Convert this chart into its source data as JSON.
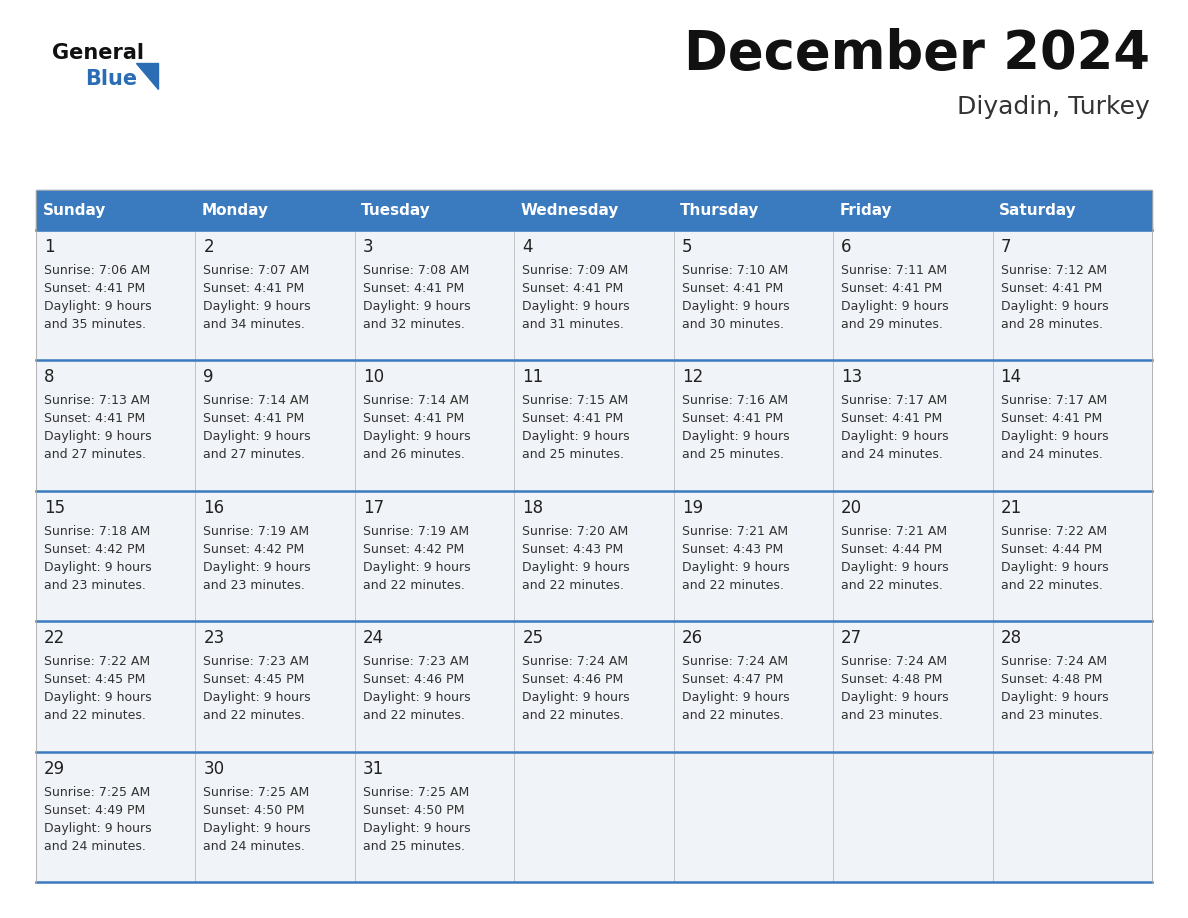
{
  "title": "December 2024",
  "subtitle": "Diyadin, Turkey",
  "header_color": "#3a7abf",
  "header_text_color": "#ffffff",
  "border_color": "#3a7abf",
  "cell_bg_color": "#f0f3f7",
  "days_of_week": [
    "Sunday",
    "Monday",
    "Tuesday",
    "Wednesday",
    "Thursday",
    "Friday",
    "Saturday"
  ],
  "calendar_data": [
    [
      {
        "day": "1",
        "sunrise": "7:06 AM",
        "sunset": "4:41 PM",
        "daylight_line1": "Daylight: 9 hours",
        "daylight_line2": "and 35 minutes."
      },
      {
        "day": "2",
        "sunrise": "7:07 AM",
        "sunset": "4:41 PM",
        "daylight_line1": "Daylight: 9 hours",
        "daylight_line2": "and 34 minutes."
      },
      {
        "day": "3",
        "sunrise": "7:08 AM",
        "sunset": "4:41 PM",
        "daylight_line1": "Daylight: 9 hours",
        "daylight_line2": "and 32 minutes."
      },
      {
        "day": "4",
        "sunrise": "7:09 AM",
        "sunset": "4:41 PM",
        "daylight_line1": "Daylight: 9 hours",
        "daylight_line2": "and 31 minutes."
      },
      {
        "day": "5",
        "sunrise": "7:10 AM",
        "sunset": "4:41 PM",
        "daylight_line1": "Daylight: 9 hours",
        "daylight_line2": "and 30 minutes."
      },
      {
        "day": "6",
        "sunrise": "7:11 AM",
        "sunset": "4:41 PM",
        "daylight_line1": "Daylight: 9 hours",
        "daylight_line2": "and 29 minutes."
      },
      {
        "day": "7",
        "sunrise": "7:12 AM",
        "sunset": "4:41 PM",
        "daylight_line1": "Daylight: 9 hours",
        "daylight_line2": "and 28 minutes."
      }
    ],
    [
      {
        "day": "8",
        "sunrise": "7:13 AM",
        "sunset": "4:41 PM",
        "daylight_line1": "Daylight: 9 hours",
        "daylight_line2": "and 27 minutes."
      },
      {
        "day": "9",
        "sunrise": "7:14 AM",
        "sunset": "4:41 PM",
        "daylight_line1": "Daylight: 9 hours",
        "daylight_line2": "and 27 minutes."
      },
      {
        "day": "10",
        "sunrise": "7:14 AM",
        "sunset": "4:41 PM",
        "daylight_line1": "Daylight: 9 hours",
        "daylight_line2": "and 26 minutes."
      },
      {
        "day": "11",
        "sunrise": "7:15 AM",
        "sunset": "4:41 PM",
        "daylight_line1": "Daylight: 9 hours",
        "daylight_line2": "and 25 minutes."
      },
      {
        "day": "12",
        "sunrise": "7:16 AM",
        "sunset": "4:41 PM",
        "daylight_line1": "Daylight: 9 hours",
        "daylight_line2": "and 25 minutes."
      },
      {
        "day": "13",
        "sunrise": "7:17 AM",
        "sunset": "4:41 PM",
        "daylight_line1": "Daylight: 9 hours",
        "daylight_line2": "and 24 minutes."
      },
      {
        "day": "14",
        "sunrise": "7:17 AM",
        "sunset": "4:41 PM",
        "daylight_line1": "Daylight: 9 hours",
        "daylight_line2": "and 24 minutes."
      }
    ],
    [
      {
        "day": "15",
        "sunrise": "7:18 AM",
        "sunset": "4:42 PM",
        "daylight_line1": "Daylight: 9 hours",
        "daylight_line2": "and 23 minutes."
      },
      {
        "day": "16",
        "sunrise": "7:19 AM",
        "sunset": "4:42 PM",
        "daylight_line1": "Daylight: 9 hours",
        "daylight_line2": "and 23 minutes."
      },
      {
        "day": "17",
        "sunrise": "7:19 AM",
        "sunset": "4:42 PM",
        "daylight_line1": "Daylight: 9 hours",
        "daylight_line2": "and 22 minutes."
      },
      {
        "day": "18",
        "sunrise": "7:20 AM",
        "sunset": "4:43 PM",
        "daylight_line1": "Daylight: 9 hours",
        "daylight_line2": "and 22 minutes."
      },
      {
        "day": "19",
        "sunrise": "7:21 AM",
        "sunset": "4:43 PM",
        "daylight_line1": "Daylight: 9 hours",
        "daylight_line2": "and 22 minutes."
      },
      {
        "day": "20",
        "sunrise": "7:21 AM",
        "sunset": "4:44 PM",
        "daylight_line1": "Daylight: 9 hours",
        "daylight_line2": "and 22 minutes."
      },
      {
        "day": "21",
        "sunrise": "7:22 AM",
        "sunset": "4:44 PM",
        "daylight_line1": "Daylight: 9 hours",
        "daylight_line2": "and 22 minutes."
      }
    ],
    [
      {
        "day": "22",
        "sunrise": "7:22 AM",
        "sunset": "4:45 PM",
        "daylight_line1": "Daylight: 9 hours",
        "daylight_line2": "and 22 minutes."
      },
      {
        "day": "23",
        "sunrise": "7:23 AM",
        "sunset": "4:45 PM",
        "daylight_line1": "Daylight: 9 hours",
        "daylight_line2": "and 22 minutes."
      },
      {
        "day": "24",
        "sunrise": "7:23 AM",
        "sunset": "4:46 PM",
        "daylight_line1": "Daylight: 9 hours",
        "daylight_line2": "and 22 minutes."
      },
      {
        "day": "25",
        "sunrise": "7:24 AM",
        "sunset": "4:46 PM",
        "daylight_line1": "Daylight: 9 hours",
        "daylight_line2": "and 22 minutes."
      },
      {
        "day": "26",
        "sunrise": "7:24 AM",
        "sunset": "4:47 PM",
        "daylight_line1": "Daylight: 9 hours",
        "daylight_line2": "and 22 minutes."
      },
      {
        "day": "27",
        "sunrise": "7:24 AM",
        "sunset": "4:48 PM",
        "daylight_line1": "Daylight: 9 hours",
        "daylight_line2": "and 23 minutes."
      },
      {
        "day": "28",
        "sunrise": "7:24 AM",
        "sunset": "4:48 PM",
        "daylight_line1": "Daylight: 9 hours",
        "daylight_line2": "and 23 minutes."
      }
    ],
    [
      {
        "day": "29",
        "sunrise": "7:25 AM",
        "sunset": "4:49 PM",
        "daylight_line1": "Daylight: 9 hours",
        "daylight_line2": "and 24 minutes."
      },
      {
        "day": "30",
        "sunrise": "7:25 AM",
        "sunset": "4:50 PM",
        "daylight_line1": "Daylight: 9 hours",
        "daylight_line2": "and 24 minutes."
      },
      {
        "day": "31",
        "sunrise": "7:25 AM",
        "sunset": "4:50 PM",
        "daylight_line1": "Daylight: 9 hours",
        "daylight_line2": "and 25 minutes."
      },
      null,
      null,
      null,
      null
    ]
  ],
  "logo_triangle_color": "#2a6db5",
  "title_fontsize": 38,
  "subtitle_fontsize": 18,
  "header_fontsize": 11,
  "day_num_fontsize": 12,
  "cell_text_fontsize": 9
}
